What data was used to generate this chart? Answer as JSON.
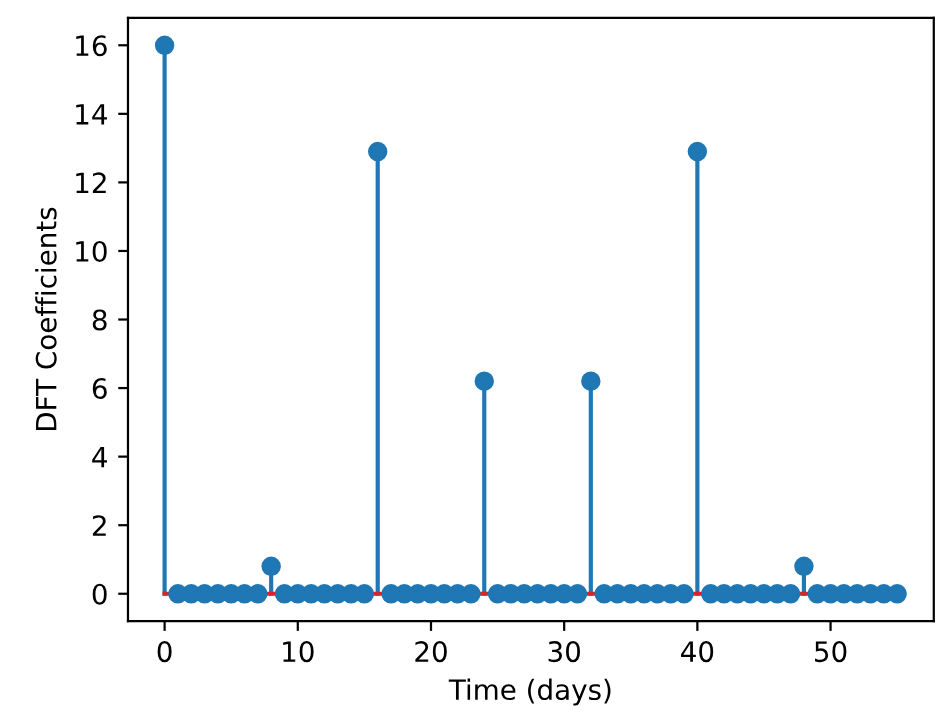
{
  "chart_data": {
    "type": "lollipop",
    "xlabel": "Time (days)",
    "ylabel": "DFT Coefficients",
    "x": [
      0,
      1,
      2,
      3,
      4,
      5,
      6,
      7,
      8,
      9,
      10,
      11,
      12,
      13,
      14,
      15,
      16,
      17,
      18,
      19,
      20,
      21,
      22,
      23,
      24,
      25,
      26,
      27,
      28,
      29,
      30,
      31,
      32,
      33,
      34,
      35,
      36,
      37,
      38,
      39,
      40,
      41,
      42,
      43,
      44,
      45,
      46,
      47,
      48,
      49,
      50,
      51,
      52,
      53,
      54,
      55
    ],
    "values": [
      16,
      0,
      0,
      0,
      0,
      0,
      0,
      0,
      0.8,
      0,
      0,
      0,
      0,
      0,
      0,
      0,
      12.9,
      0,
      0,
      0,
      0,
      0,
      0,
      0,
      6.2,
      0,
      0,
      0,
      0,
      0,
      0,
      0,
      6.2,
      0,
      0,
      0,
      0,
      0,
      0,
      0,
      12.9,
      0,
      0,
      0,
      0,
      0,
      0,
      0,
      0.8,
      0,
      0,
      0,
      0,
      0,
      0,
      0
    ],
    "color": "#1f77b4",
    "marker": "circle",
    "ref_lines": [
      {
        "axis": "y",
        "value": 0,
        "color": "#d62728"
      }
    ],
    "xlim": [
      -2.75,
      57.75
    ],
    "ylim": [
      -0.8,
      16.8
    ],
    "xticks": [
      0,
      10,
      20,
      30,
      40,
      50
    ],
    "yticks": [
      0,
      2,
      4,
      6,
      8,
      10,
      12,
      14,
      16
    ]
  }
}
